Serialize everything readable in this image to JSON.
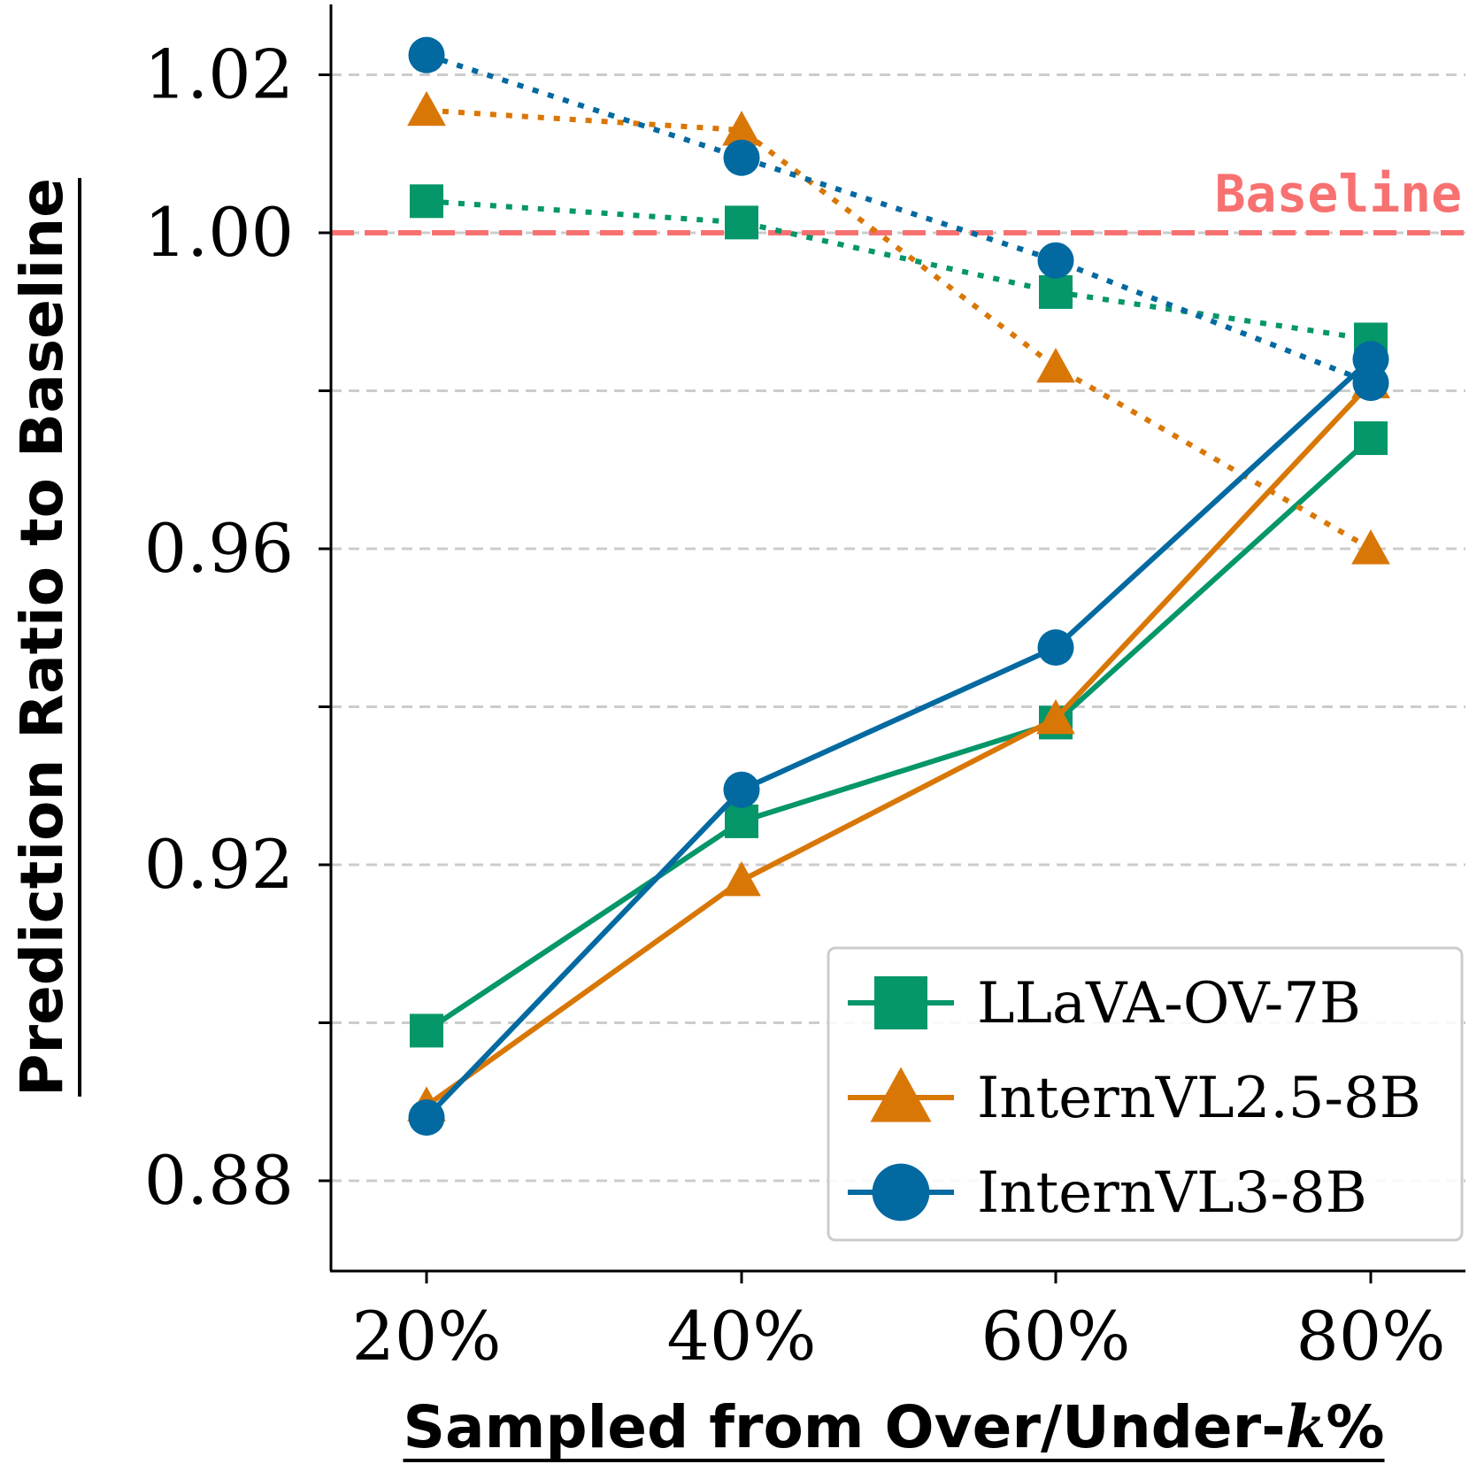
{
  "chart_data": {
    "type": "line",
    "title": "",
    "xlabel_prefix": "Sampled from Over/Under-",
    "xlabel_var": "k",
    "xlabel_suffix": "%",
    "ylabel": "Prediction Ratio to Baseline",
    "categories": [
      "20%",
      "40%",
      "60%",
      "80%"
    ],
    "ylim": [
      0.875,
      1.025
    ],
    "yticks": [
      0.88,
      0.9,
      0.92,
      0.94,
      0.96,
      0.98,
      1.0,
      1.02
    ],
    "ytick_labels": [
      "0.88",
      "",
      "0.92",
      "",
      "0.96",
      "",
      "1.00",
      "1.02"
    ],
    "grid": "horizontal-dashed",
    "baseline": {
      "value": 1.0,
      "label": "Baseline",
      "color": "#f87171"
    },
    "legend_position": "bottom-right",
    "series": [
      {
        "name": "LLaVA-OV-7B",
        "color": "#059669",
        "marker": "square",
        "solid": [
          0.899,
          0.9255,
          0.938,
          0.974
        ],
        "dotted": [
          1.004,
          1.0013,
          0.9925,
          0.9865
        ]
      },
      {
        "name": "InternVL2.5-8B",
        "color": "#d97706",
        "marker": "triangle",
        "solid": [
          0.8895,
          0.918,
          0.9385,
          0.981
        ],
        "dotted": [
          1.0155,
          1.013,
          0.983,
          0.96
        ]
      },
      {
        "name": "InternVL3-8B",
        "color": "#0369a1",
        "marker": "circle",
        "solid": [
          0.888,
          0.9295,
          0.9475,
          0.984
        ],
        "dotted": [
          1.0225,
          1.0095,
          0.9965,
          0.981
        ]
      }
    ]
  }
}
